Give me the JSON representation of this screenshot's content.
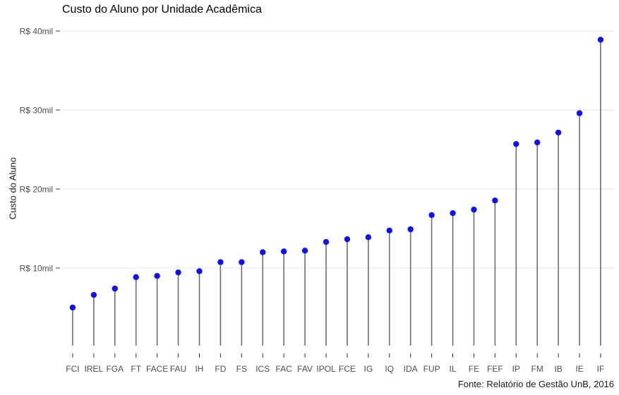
{
  "chart_data": {
    "type": "scatter",
    "style": "lollipop",
    "title": "Custo do Aluno por Unidade Acadêmica",
    "ylabel": "Custo do Aluno",
    "xlabel": "",
    "caption": "Fonte: Relatório de Gestão UnB, 2016",
    "categories": [
      "FCI",
      "IREL",
      "FGA",
      "FT",
      "FACE",
      "FAU",
      "IH",
      "FD",
      "FS",
      "ICS",
      "FAC",
      "FAV",
      "IPOL",
      "FCE",
      "IG",
      "IQ",
      "IDA",
      "FUP",
      "IL",
      "FE",
      "FEF",
      "IP",
      "FM",
      "IB",
      "IE",
      "IF"
    ],
    "values": [
      5000,
      6600,
      7400,
      8850,
      9000,
      9450,
      9600,
      10750,
      10750,
      12000,
      12100,
      12200,
      13300,
      13650,
      13900,
      14750,
      14900,
      16700,
      16950,
      17400,
      18550,
      25700,
      25900,
      27150,
      29600,
      38900
    ],
    "y_axis": {
      "tick_values": [
        10000,
        20000,
        30000,
        40000
      ],
      "tick_labels": [
        "R$ 10mil",
        "R$ 20mil",
        "R$ 30mil",
        "R$ 40mil"
      ]
    },
    "ylim": [
      0,
      42000
    ],
    "grid": "horizontal-major-only",
    "legend": "none",
    "colors": {
      "dot": "#1111e8",
      "stem": "#6e6e6e",
      "gridline": "#e3e3e3",
      "tick": "#333333",
      "tick_label": "#4d4d4d",
      "title": "#000000",
      "background": "#ffffff"
    }
  }
}
